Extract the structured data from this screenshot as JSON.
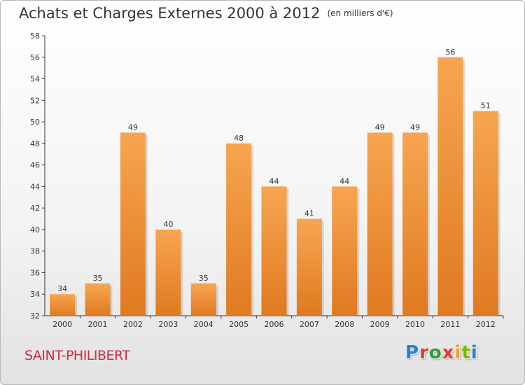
{
  "header": {
    "title": "Achats et Charges Externes 2000 à 2012",
    "unit": "(en milliers d'€)"
  },
  "footer": {
    "commune": "SAINT-PHILIBERT",
    "logo": [
      "P",
      "r",
      "o",
      "x",
      "i",
      "t",
      "i"
    ]
  },
  "colors": {
    "bar_top": "#f7a550",
    "bar_bottom": "#e07a20",
    "commune": "#cc2b44"
  },
  "chart_data": {
    "type": "bar",
    "title": "Achats et Charges Externes 2000 à 2012",
    "subtitle": "(en milliers d'€)",
    "xlabel": "",
    "ylabel": "",
    "categories": [
      "2000",
      "2001",
      "2002",
      "2003",
      "2004",
      "2005",
      "2006",
      "2007",
      "2008",
      "2009",
      "2010",
      "2011",
      "2012"
    ],
    "values": [
      34,
      35,
      49,
      40,
      35,
      48,
      44,
      41,
      44,
      49,
      49,
      56,
      51
    ],
    "ylim": [
      32,
      58
    ],
    "yticks": [
      32,
      34,
      36,
      38,
      40,
      42,
      44,
      46,
      48,
      50,
      52,
      54,
      56,
      58
    ],
    "grid": false,
    "data_labels": true
  }
}
